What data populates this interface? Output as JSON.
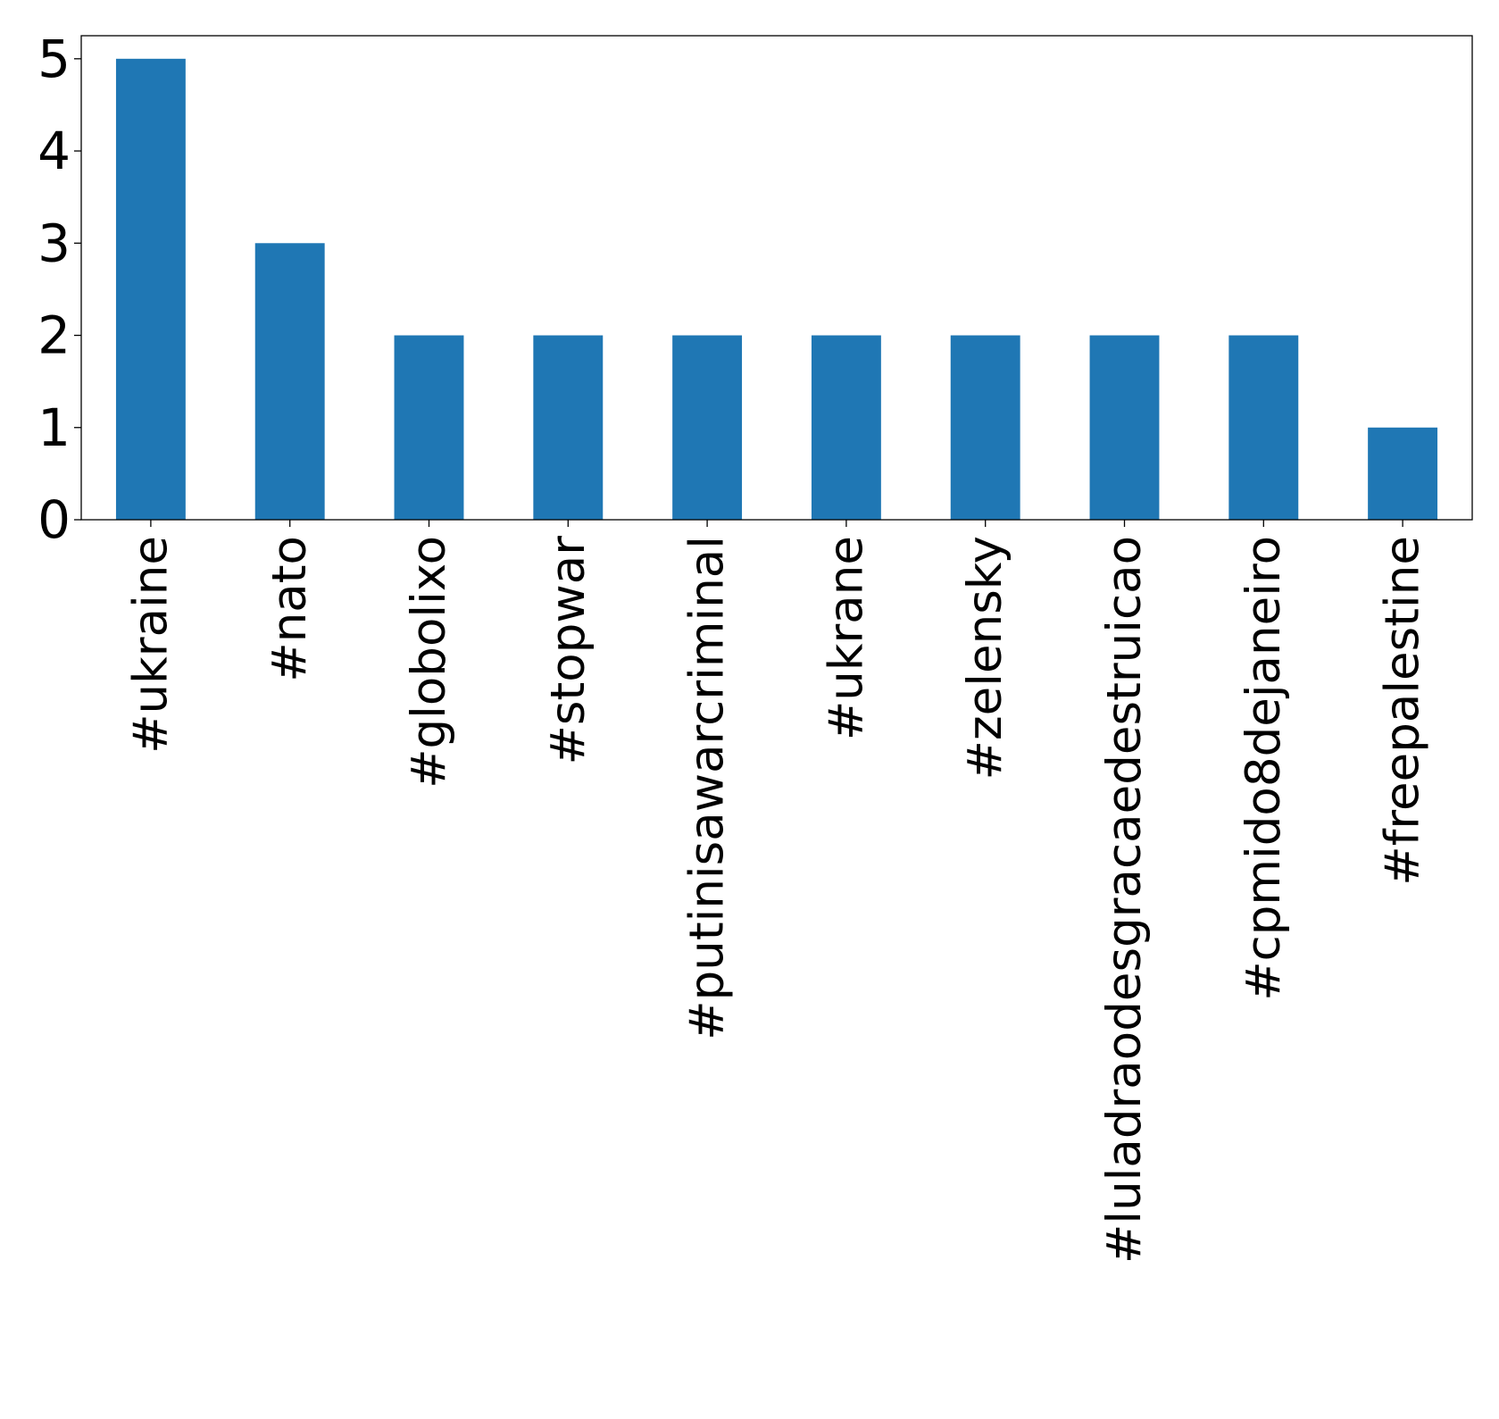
{
  "chart_data": {
    "type": "bar",
    "title": "",
    "xlabel": "",
    "ylabel": "",
    "categories": [
      "#ukraine",
      "#nato",
      "#globolixo",
      "#stopwar",
      "#putinisawarcriminal",
      "#ukrane",
      "#zelensky",
      "#luladraodesgracaedestruicao",
      "#cpmido8dejaneiro",
      "#freepalestine"
    ],
    "values": [
      5,
      3,
      2,
      2,
      2,
      2,
      2,
      2,
      2,
      1
    ],
    "ylim": [
      0,
      5.25
    ],
    "yticks": [
      0,
      1,
      2,
      3,
      4,
      5
    ],
    "grid": false,
    "legend": "none",
    "bar_color": "#1f77b4",
    "axis_color": "#000000"
  }
}
